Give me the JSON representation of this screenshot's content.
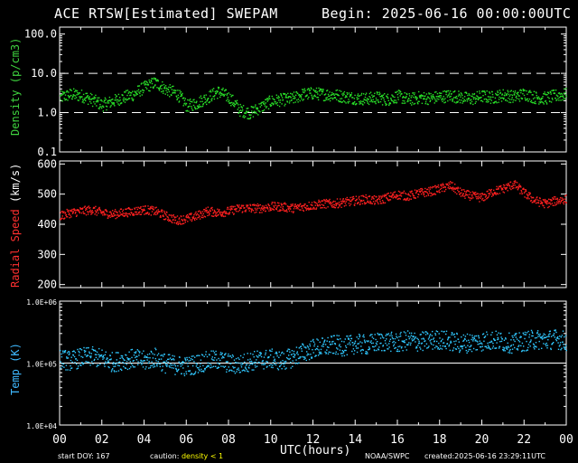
{
  "title": "ACE RTSW[Estimated] SWEPAM",
  "begin": "Begin: 2025-06-16 00:00:00UTC",
  "footer": {
    "start_doy": "start DOY: 167",
    "caution_label": "caution:",
    "caution_value": "density < 1",
    "agency": "NOAA/SWPC",
    "created": "created:2025-06-16 23:29:11UTC"
  },
  "xaxis": {
    "label": "UTC(hours)",
    "ticks": [
      "00",
      "02",
      "04",
      "06",
      "08",
      "10",
      "12",
      "14",
      "16",
      "18",
      "20",
      "22",
      "00"
    ]
  },
  "colors": {
    "density": "#28e028",
    "speed": "#ff2020",
    "temp": "#30c8ff",
    "axes": "#ffffff",
    "background": "#000000"
  },
  "chart_data": [
    {
      "type": "scatter",
      "name": "density",
      "ylabel_parts": [
        {
          "text": "Density",
          "color": "#3fd33f"
        },
        {
          "text": " (p/cm3)",
          "color": "#3fd33f"
        }
      ],
      "yscale": "log",
      "ylim": [
        0.1,
        150
      ],
      "yticks": [
        "0.1",
        "1.0",
        "10.0",
        "100.0"
      ],
      "reference_lines": [
        1.0,
        10.0
      ],
      "x": [
        0,
        0.5,
        1,
        1.5,
        2,
        2.5,
        3,
        3.5,
        4,
        4.5,
        5,
        5.5,
        6,
        6.5,
        7,
        7.5,
        8,
        8.5,
        9,
        9.5,
        10,
        10.5,
        11,
        11.5,
        12,
        12.5,
        13,
        13.5,
        14,
        14.5,
        15,
        15.5,
        16,
        16.5,
        17,
        17.5,
        18,
        18.5,
        19,
        19.5,
        20,
        20.5,
        21,
        21.5,
        22,
        22.5,
        23,
        23.5,
        24
      ],
      "values": [
        2.5,
        3,
        2.8,
        2.2,
        1.6,
        2,
        2.5,
        3,
        4.5,
        6,
        4,
        3.2,
        1.5,
        1.8,
        2.5,
        3.5,
        2.5,
        1.2,
        1,
        1.4,
        2,
        2.2,
        2.3,
        3,
        3.2,
        3,
        2.9,
        2.6,
        2.4,
        2.3,
        2.5,
        2.2,
        2.7,
        2.2,
        2.5,
        2.4,
        2.6,
        2.8,
        2.5,
        2.3,
        2.7,
        2.5,
        2.9,
        2.6,
        3.1,
        2.5,
        2.4,
        2.8,
        3
      ]
    },
    {
      "type": "scatter",
      "name": "radial speed",
      "ylabel_parts": [
        {
          "text": "Radial",
          "color": "#ff3030"
        },
        {
          "text": " Speed",
          "color": "#ff3030"
        },
        {
          "text": " (km/s)",
          "color": "#ffffff"
        }
      ],
      "ylim": [
        190,
        610
      ],
      "yticks": [
        "200",
        "300",
        "400",
        "500",
        "600"
      ],
      "x": [
        0,
        0.5,
        1,
        1.5,
        2,
        2.5,
        3,
        3.5,
        4,
        4.5,
        5,
        5.5,
        6,
        6.5,
        7,
        7.5,
        8,
        8.5,
        9,
        9.5,
        10,
        10.5,
        11,
        11.5,
        12,
        12.5,
        13,
        13.5,
        14,
        14.5,
        15,
        15.5,
        16,
        16.5,
        17,
        17.5,
        18,
        18.5,
        19,
        19.5,
        20,
        20.5,
        21,
        21.5,
        22,
        22.5,
        23,
        23.5,
        24
      ],
      "values": [
        430,
        440,
        445,
        450,
        440,
        435,
        440,
        445,
        450,
        445,
        430,
        415,
        420,
        430,
        445,
        440,
        445,
        455,
        455,
        455,
        460,
        460,
        455,
        460,
        465,
        470,
        470,
        475,
        480,
        485,
        480,
        490,
        500,
        495,
        505,
        510,
        520,
        530,
        505,
        495,
        490,
        510,
        520,
        535,
        505,
        480,
        470,
        480,
        485
      ]
    },
    {
      "type": "scatter",
      "name": "temperature",
      "ylabel_parts": [
        {
          "text": "Temp",
          "color": "#3fb9ff"
        },
        {
          "text": " (K)",
          "color": "#3fb9ff"
        }
      ],
      "yscale": "log",
      "ylim": [
        10000,
        1000000
      ],
      "yticks": [
        "1.0E+04",
        "1.0E+05",
        "1.0E+06"
      ],
      "reference_lines": [
        100000
      ],
      "x": [
        0,
        0.5,
        1,
        1.5,
        2,
        2.5,
        3,
        3.5,
        4,
        4.5,
        5,
        5.5,
        6,
        6.5,
        7,
        7.5,
        8,
        8.5,
        9,
        9.5,
        10,
        10.5,
        11,
        11.5,
        12,
        12.5,
        13,
        13.5,
        14,
        14.5,
        15,
        15.5,
        16,
        16.5,
        17,
        17.5,
        18,
        18.5,
        19,
        19.5,
        20,
        20.5,
        21,
        21.5,
        22,
        22.5,
        23,
        23.5,
        24
      ],
      "values": [
        120000,
        110000,
        125000,
        130000,
        120000,
        105000,
        115000,
        120000,
        110000,
        125000,
        100000,
        95000,
        90000,
        100000,
        110000,
        115000,
        100000,
        95000,
        110000,
        115000,
        120000,
        110000,
        125000,
        150000,
        175000,
        185000,
        200000,
        190000,
        210000,
        200000,
        220000,
        230000,
        215000,
        240000,
        225000,
        235000,
        245000,
        230000,
        210000,
        220000,
        230000,
        240000,
        225000,
        210000,
        230000,
        245000,
        240000,
        250000,
        230000
      ]
    }
  ]
}
